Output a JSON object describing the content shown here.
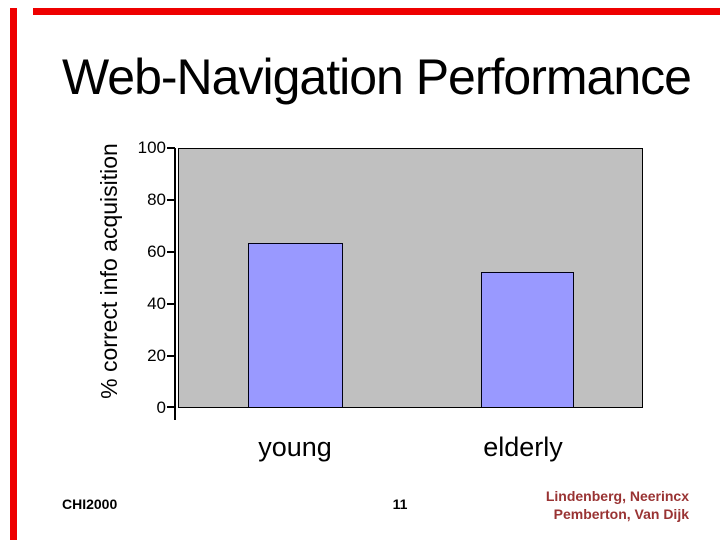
{
  "slide": {
    "title": "Web-Navigation Performance",
    "footer": {
      "conference": "CHI2000",
      "page_number": "11",
      "authors_line1": "Lindenberg, Neerincx",
      "authors_line2": "Pemberton, Van Dijk"
    }
  },
  "colors": {
    "accent_red": "#ee0000",
    "bar_fill": "#9999ff",
    "plot_background": "#c0c0c0",
    "authors_text": "#993333",
    "text": "#000000"
  },
  "chart_data": {
    "type": "bar",
    "title": "",
    "xlabel": "",
    "ylabel": "% correct info acquisition",
    "categories": [
      "young",
      "elderly"
    ],
    "values": [
      63,
      52
    ],
    "ylim": [
      0,
      100
    ],
    "yticks": [
      100,
      80,
      60,
      40,
      20,
      0
    ],
    "grid": false,
    "legend": false,
    "plot_background": "gray",
    "bar_color": "light periwinkle blue"
  }
}
